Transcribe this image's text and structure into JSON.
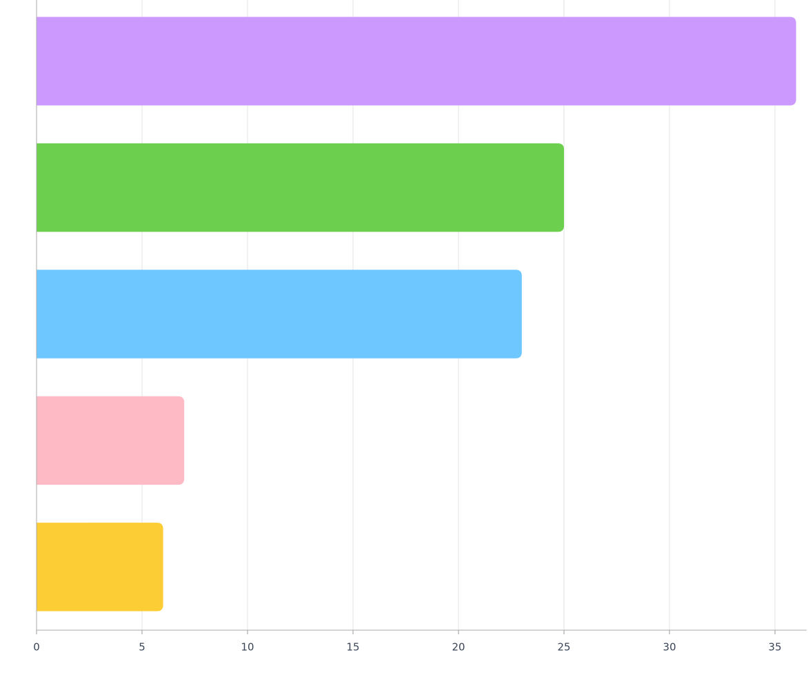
{
  "chart_data": {
    "type": "bar",
    "orientation": "horizontal",
    "categories": [
      null,
      null,
      null,
      null,
      null
    ],
    "values": [
      36,
      25,
      23,
      7,
      6
    ],
    "colors": [
      "#cc99ff",
      "#6ccf4e",
      "#6ec8ff",
      "#ffbbc5",
      "#fdcd36"
    ],
    "xlim": [
      0,
      36.5
    ],
    "xticks": [
      0,
      5,
      10,
      15,
      20,
      25,
      30,
      35
    ],
    "grid": true
  }
}
